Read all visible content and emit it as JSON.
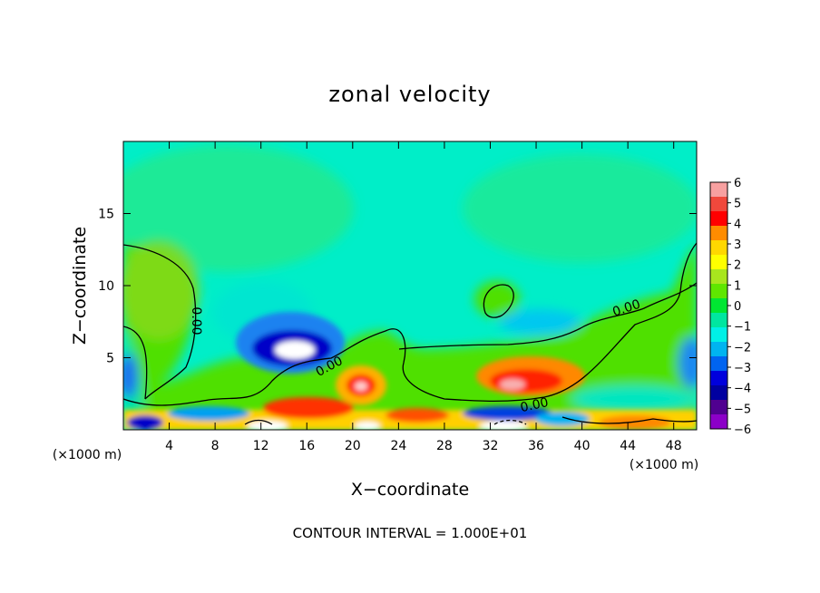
{
  "chart_data": {
    "type": "heatmap",
    "title": "zonal velocity",
    "xlabel": "X−coordinate",
    "ylabel": "Z−coordinate",
    "x_unit_left": "(×1000 m)",
    "x_unit_right": "(×1000 m)",
    "xlim": [
      0,
      50
    ],
    "ylim": [
      0,
      20
    ],
    "x_ticks": [
      4,
      8,
      12,
      16,
      20,
      24,
      28,
      32,
      36,
      40,
      44,
      48
    ],
    "x_tick_labels": [
      "4",
      "8",
      "12",
      "16",
      "20",
      "24",
      "28",
      "32",
      "36",
      "40",
      "44",
      "48"
    ],
    "y_ticks": [
      5,
      10,
      15
    ],
    "y_tick_labels": [
      "5",
      "10",
      "15"
    ],
    "colorbar": {
      "min": -6,
      "max": 6,
      "tick_labels": [
        "6",
        "5",
        "4",
        "3",
        "2",
        "1",
        "0",
        "−1",
        "−2",
        "−3",
        "−4",
        "−5",
        "−6"
      ],
      "colors": [
        "#f7a0a0",
        "#f0483c",
        "#ff0000",
        "#ff8c00",
        "#ffd700",
        "#ffff00",
        "#a8e61e",
        "#5fe600",
        "#00e632",
        "#00e6a0",
        "#00f0e6",
        "#00b4f0",
        "#0064f0",
        "#0000dc",
        "#0000a0",
        "#500090",
        "#8c00c8"
      ]
    },
    "contours": [
      {
        "label": "0.00",
        "rotated": true
      },
      {
        "label": "0.00"
      },
      {
        "label": "0.00"
      },
      {
        "label": "0.00"
      }
    ],
    "annotation": "CONTOUR INTERVAL = 1.000E+01",
    "grid": false
  }
}
